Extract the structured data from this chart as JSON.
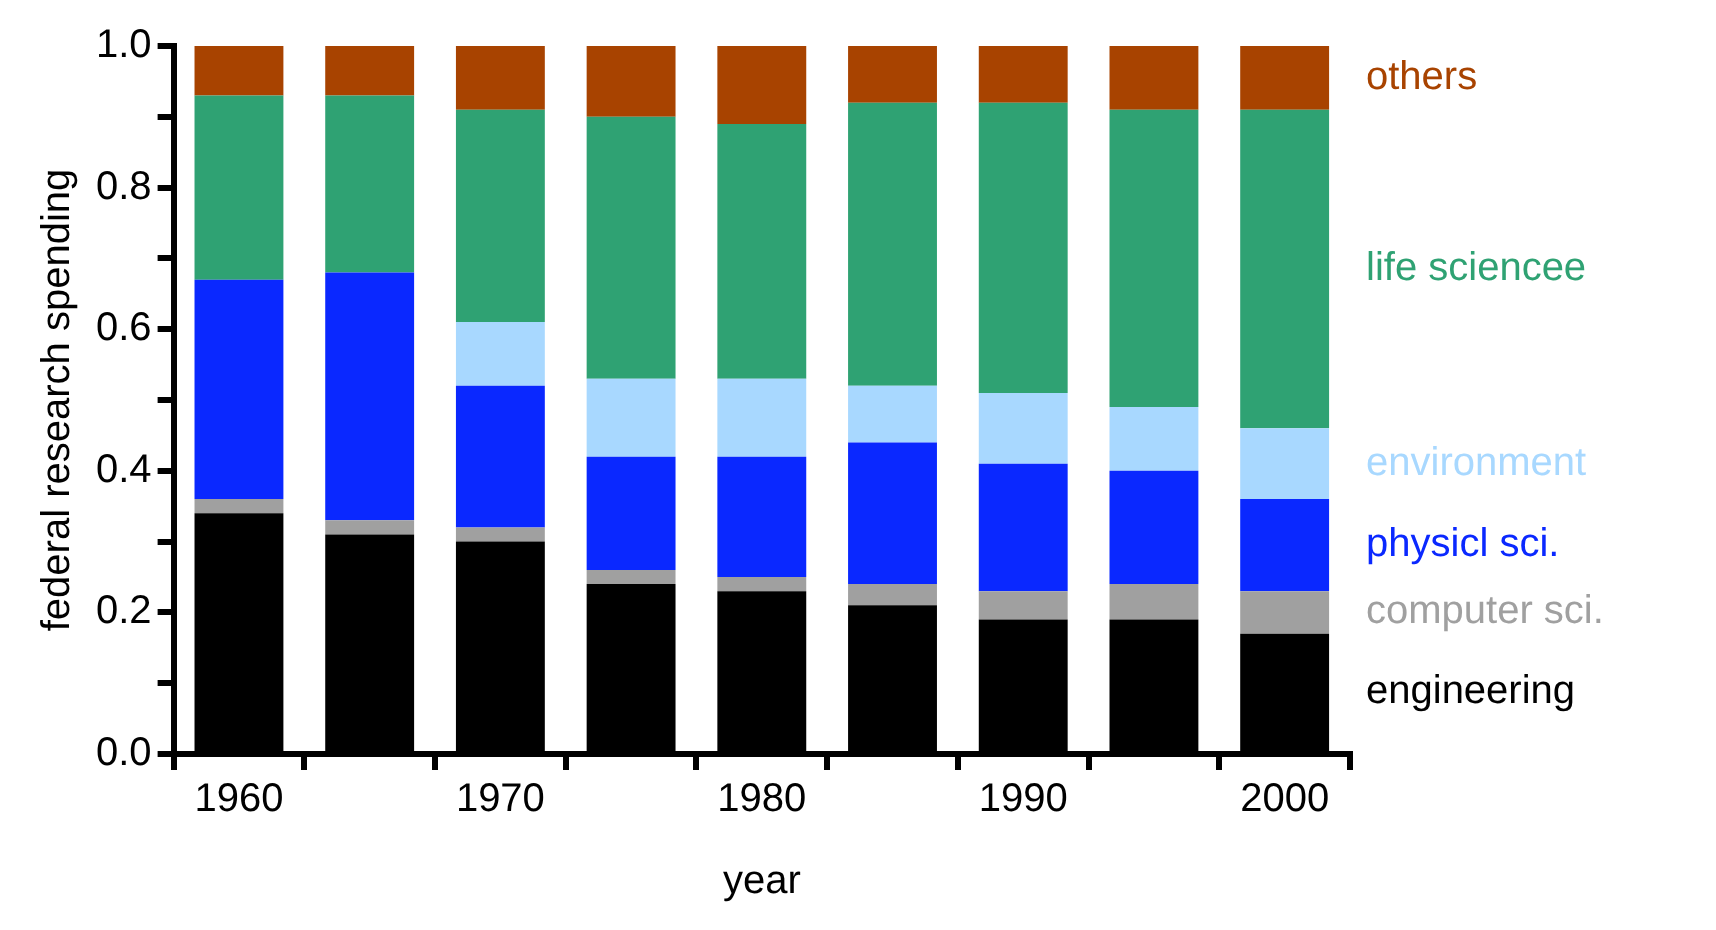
{
  "chart_data": {
    "type": "bar",
    "stacked": true,
    "xlabel": "year",
    "ylabel": "federal research spending",
    "categories": [
      "1960",
      null,
      "1970",
      null,
      "1980",
      null,
      "1990",
      null,
      "2000"
    ],
    "series": [
      {
        "name": "engineering",
        "color": "#000000",
        "values": [
          0.34,
          0.31,
          0.3,
          0.24,
          0.23,
          0.21,
          0.19,
          0.19,
          0.17
        ]
      },
      {
        "name": "computer sci.",
        "color": "#a0a0a0",
        "values": [
          0.02,
          0.02,
          0.02,
          0.02,
          0.02,
          0.03,
          0.04,
          0.05,
          0.06
        ]
      },
      {
        "name": "physicl sci.",
        "color": "#0a28ff",
        "values": [
          0.31,
          0.35,
          0.2,
          0.16,
          0.17,
          0.2,
          0.18,
          0.16,
          0.13
        ]
      },
      {
        "name": "environment",
        "color": "#a8d8ff",
        "values": [
          0,
          0,
          0.09,
          0.11,
          0.11,
          0.08,
          0.1,
          0.09,
          0.1
        ]
      },
      {
        "name": "life sciencee",
        "color": "#2fa273",
        "values": [
          0.26,
          0.25,
          0.3,
          0.37,
          0.36,
          0.4,
          0.41,
          0.42,
          0.45
        ]
      },
      {
        "name": "others",
        "color": "#a84300",
        "values": [
          0.07,
          0.07,
          0.09,
          0.1,
          0.11,
          0.08,
          0.08,
          0.09,
          0.09
        ]
      }
    ],
    "ylim": [
      0,
      1
    ],
    "yticks": [
      {
        "value": 0,
        "label": "0.0"
      },
      {
        "value": 0.1,
        "label": null
      },
      {
        "value": 0.2,
        "label": "0.2"
      },
      {
        "value": 0.3,
        "label": null
      },
      {
        "value": 0.4,
        "label": "0.4"
      },
      {
        "value": 0.5,
        "label": null
      },
      {
        "value": 0.6,
        "label": "0.6"
      },
      {
        "value": 0.7,
        "label": null
      },
      {
        "value": 0.8,
        "label": "0.8"
      },
      {
        "value": 0.9,
        "label": null
      },
      {
        "value": 1,
        "label": "1.0"
      }
    ],
    "grid": false,
    "legend": "right"
  }
}
